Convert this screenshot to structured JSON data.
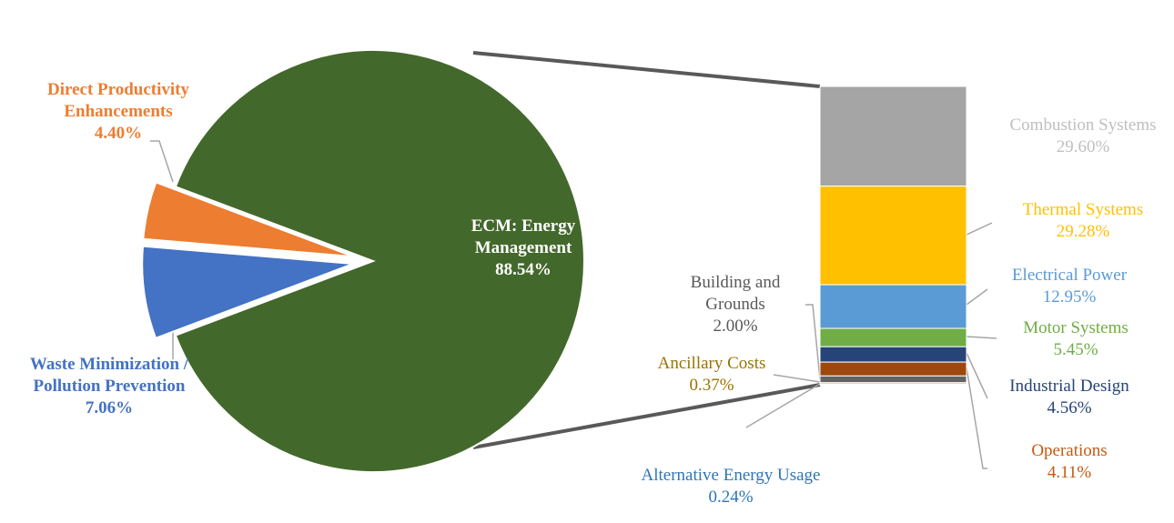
{
  "chart_data": {
    "type": "pie-of-bar",
    "pie": {
      "categories": [
        "Waste Minimization / Pollution Prevention",
        "Direct Productivity Enhancements",
        "ECM: Energy Management"
      ],
      "values": [
        7.06,
        4.4,
        88.54
      ],
      "value_labels": [
        "7.06%",
        "4.40%",
        "88.54%"
      ],
      "colors": [
        "#4472c4",
        "#ed7d31",
        "#43682b"
      ],
      "exploded": [
        true,
        true,
        false
      ]
    },
    "bar": {
      "categories": [
        "Combustion Systems",
        "Thermal Systems",
        "Electrical Power",
        "Motor Systems",
        "Industrial Design",
        "Operations",
        "Building and Grounds",
        "Ancillary Costs",
        "Alternative Energy Usage"
      ],
      "values": [
        29.6,
        29.28,
        12.95,
        5.45,
        4.56,
        4.11,
        2.0,
        0.37,
        0.24
      ],
      "value_labels": [
        "29.60%",
        "29.28%",
        "12.95%",
        "5.45%",
        "4.56%",
        "4.11%",
        "2.00%",
        "0.37%",
        "0.24%"
      ],
      "colors": [
        "#a5a5a5",
        "#ffc000",
        "#5b9bd5",
        "#70ad47",
        "#264478",
        "#9e480e",
        "#636363",
        "#997300",
        "#255e91"
      ]
    }
  }
}
